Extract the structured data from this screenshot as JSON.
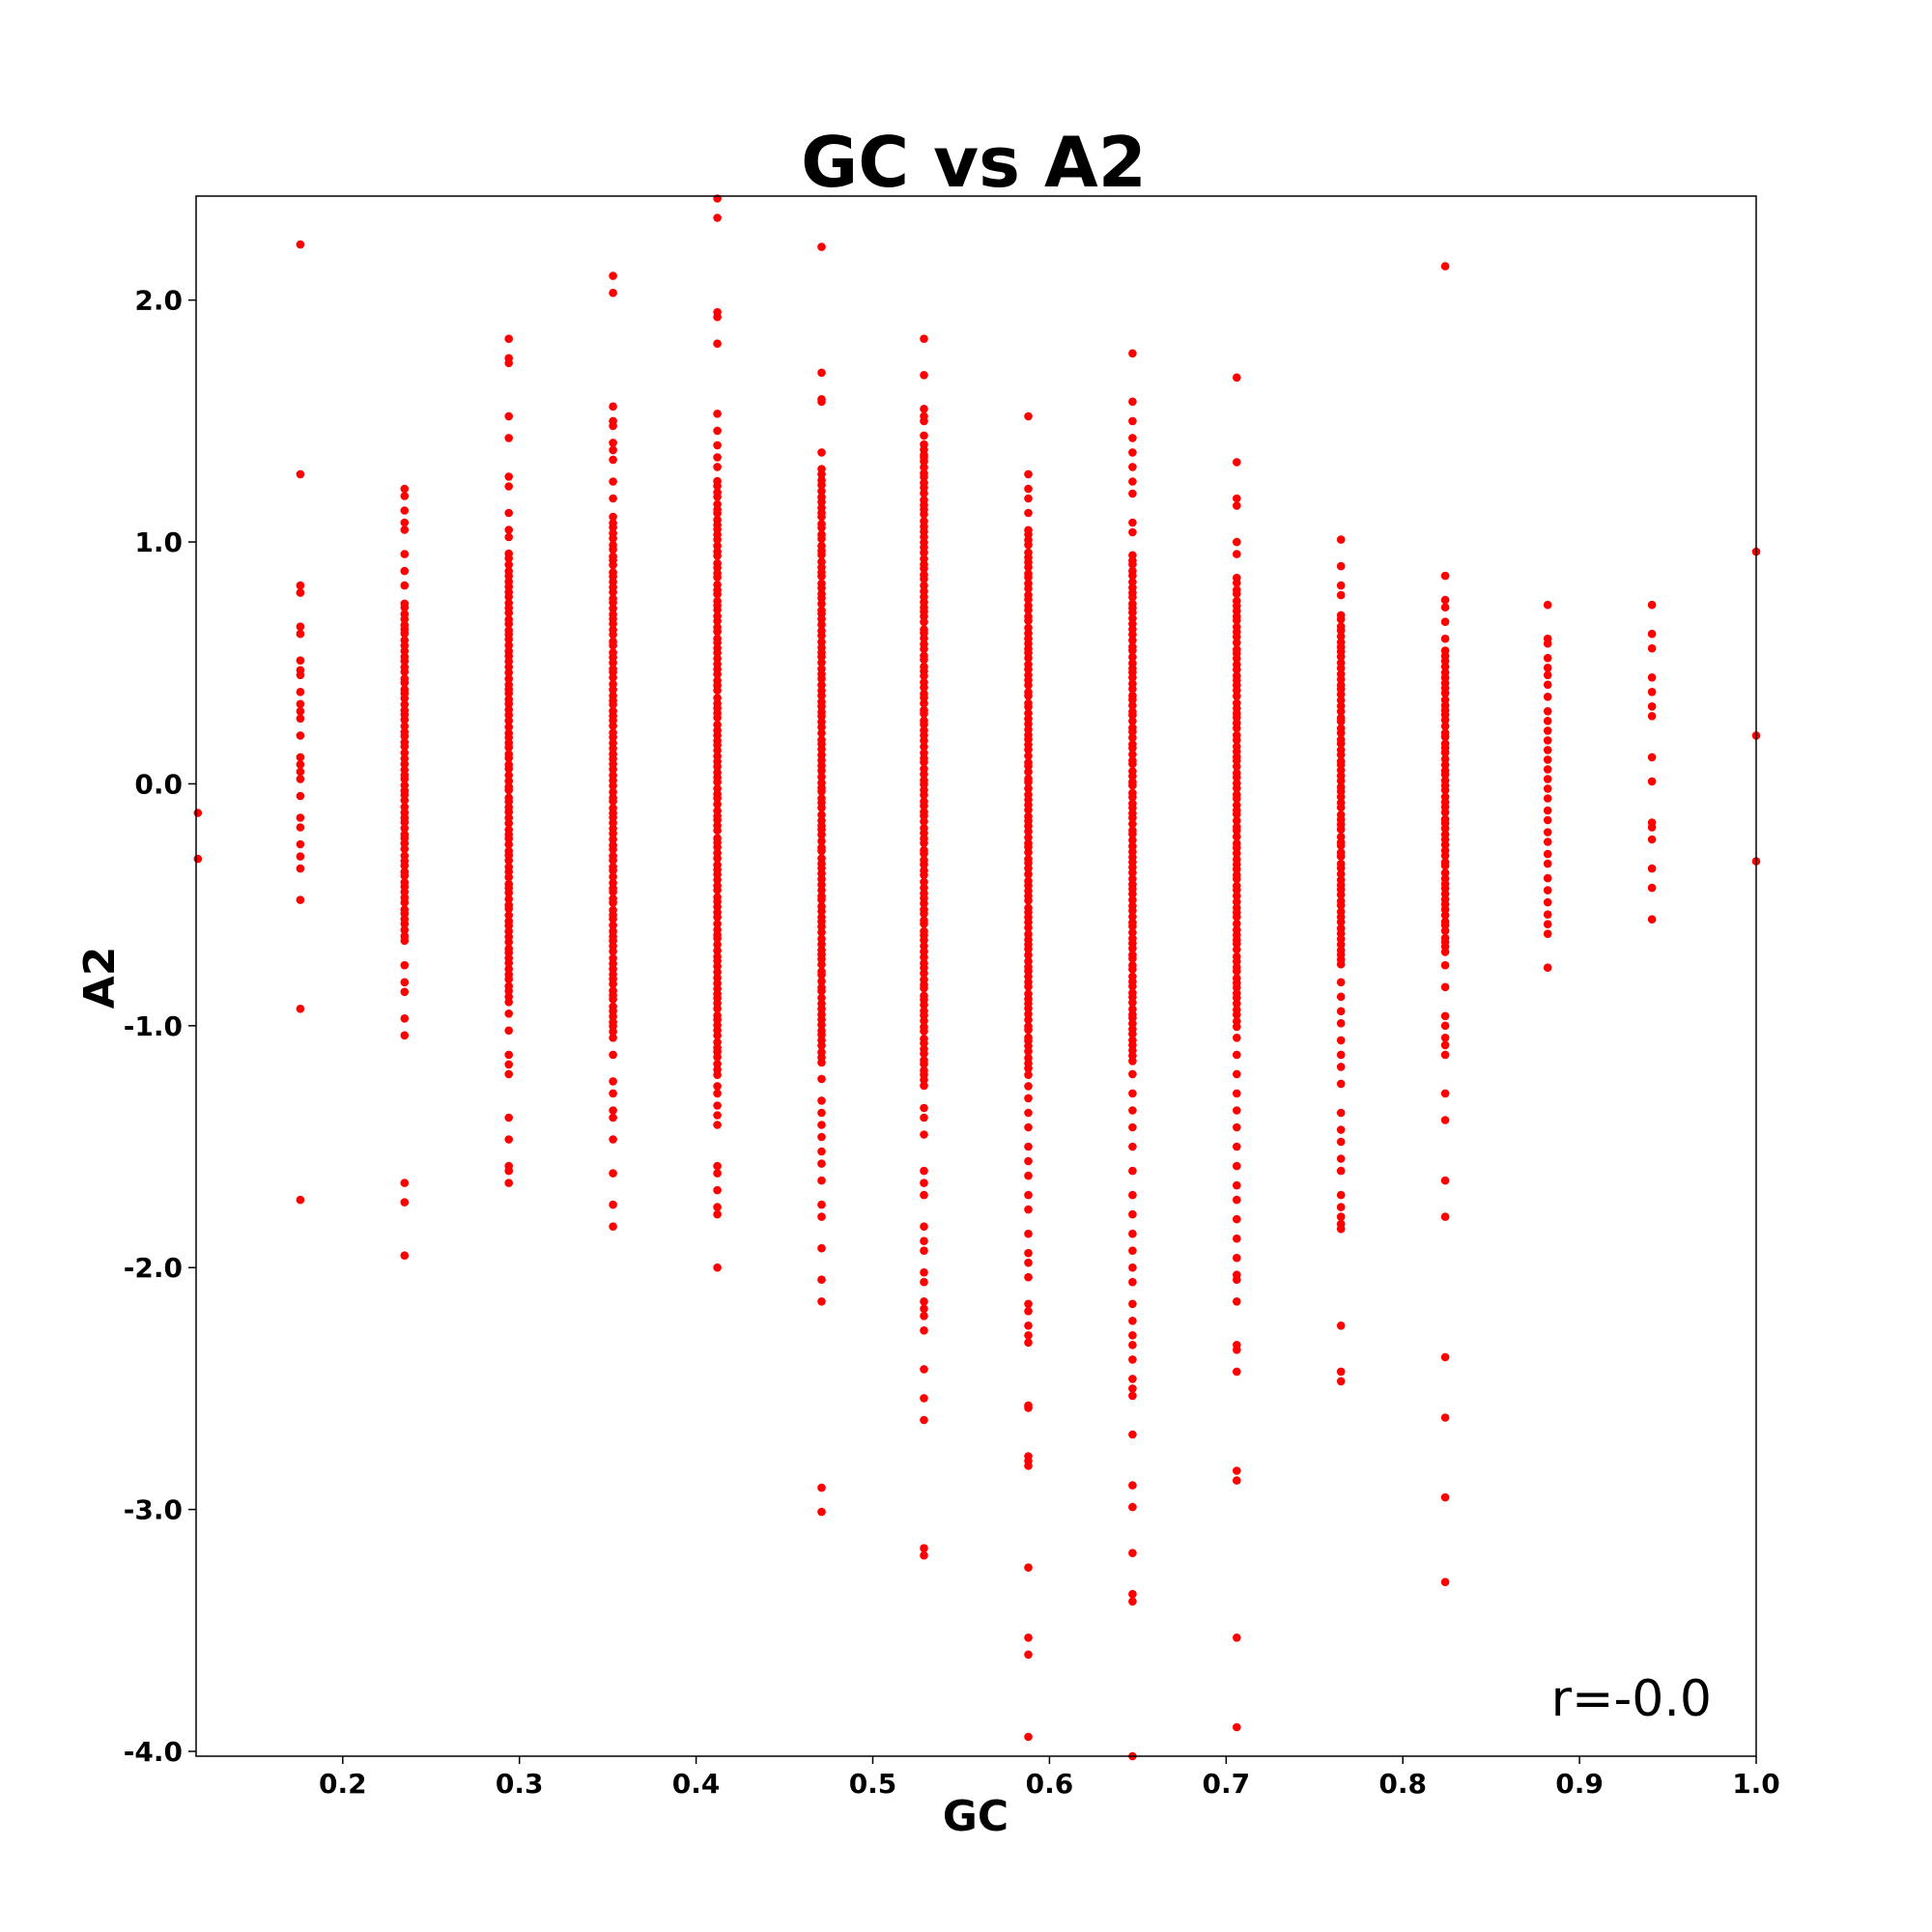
{
  "chart_data": {
    "type": "scatter",
    "title": "GC vs A2",
    "xlabel": "GC",
    "ylabel": "A2",
    "xlim": [
      0.117,
      1.0
    ],
    "ylim": [
      -4.02,
      2.43
    ],
    "xticks": [
      0.2,
      0.3,
      0.4,
      0.5,
      0.6,
      0.7,
      0.8,
      0.9,
      1.0
    ],
    "xtick_labels": [
      "0.2",
      "0.3",
      "0.4",
      "0.5",
      "0.6",
      "0.7",
      "0.8",
      "0.9",
      "1.0"
    ],
    "yticks": [
      2.0,
      1.0,
      0.0,
      -1.0,
      -2.0,
      -3.0,
      -4.0
    ],
    "ytick_labels": [
      "2.0",
      "1.0",
      "0.0",
      "-1.0",
      "-2.0",
      "-3.0",
      "-4.0"
    ],
    "grid": false,
    "marker_color": "#ff0000",
    "annotation": "r=-0.0",
    "columns": [
      {
        "x": 0.118,
        "dense": null,
        "outliers": [
          -0.12,
          -0.31
        ]
      },
      {
        "x": 0.176,
        "dense": null,
        "outliers": [
          2.23,
          1.28,
          0.82,
          0.79,
          0.65,
          0.62,
          0.51,
          0.47,
          0.45,
          0.38,
          0.33,
          0.3,
          0.27,
          0.2,
          0.11,
          0.08,
          0.05,
          0.02,
          -0.05,
          -0.14,
          -0.18,
          -0.25,
          -0.3,
          -0.35,
          -0.48,
          -0.93,
          -1.72
        ]
      },
      {
        "x": 0.235,
        "dense": [
          -0.65,
          0.75
        ],
        "outliers": [
          1.22,
          1.19,
          1.13,
          1.08,
          1.05,
          0.95,
          0.88,
          0.82,
          -0.75,
          -0.82,
          -0.86,
          -0.97,
          -1.04,
          -1.65,
          -1.73,
          -1.95
        ]
      },
      {
        "x": 0.294,
        "dense": [
          -0.9,
          0.95
        ],
        "outliers": [
          1.84,
          1.76,
          1.74,
          1.52,
          1.43,
          1.27,
          1.23,
          1.12,
          1.05,
          1.02,
          -0.95,
          -1.02,
          -1.12,
          -1.16,
          -1.2,
          -1.38,
          -1.47,
          -1.58,
          -1.6,
          -1.65
        ]
      },
      {
        "x": 0.353,
        "dense": [
          -1.05,
          1.1
        ],
        "outliers": [
          2.1,
          2.03,
          1.56,
          1.5,
          1.48,
          1.41,
          1.38,
          1.34,
          1.25,
          1.18,
          -1.12,
          -1.23,
          -1.28,
          -1.35,
          -1.38,
          -1.47,
          -1.61,
          -1.74,
          -1.83
        ]
      },
      {
        "x": 0.412,
        "dense": [
          -1.2,
          1.25
        ],
        "outliers": [
          2.42,
          2.34,
          1.95,
          1.93,
          1.82,
          1.53,
          1.46,
          1.4,
          1.35,
          1.31,
          -1.25,
          -1.28,
          -1.33,
          -1.37,
          -1.41,
          -1.58,
          -1.61,
          -1.68,
          -1.75,
          -1.78,
          -2.0
        ]
      },
      {
        "x": 0.471,
        "dense": [
          -1.15,
          1.3
        ],
        "outliers": [
          2.22,
          1.7,
          1.59,
          1.58,
          1.37,
          -1.22,
          -1.31,
          -1.36,
          -1.41,
          -1.46,
          -1.52,
          -1.57,
          -1.64,
          -1.74,
          -1.79,
          -1.92,
          -2.05,
          -2.14,
          -2.91,
          -3.01
        ]
      },
      {
        "x": 0.529,
        "dense": [
          -1.25,
          1.4
        ],
        "outliers": [
          1.84,
          1.69,
          1.55,
          1.52,
          1.5,
          1.44,
          1.35,
          -1.34,
          -1.38,
          -1.45,
          -1.6,
          -1.65,
          -1.7,
          -1.83,
          -1.89,
          -1.93,
          -2.02,
          -2.06,
          -2.14,
          -2.17,
          -2.2,
          -2.26,
          -2.42,
          -2.54,
          -2.63,
          -3.16,
          -3.19
        ]
      },
      {
        "x": 0.588,
        "dense": [
          -1.2,
          1.05
        ],
        "outliers": [
          1.52,
          1.28,
          1.22,
          1.18,
          1.12,
          -1.25,
          -1.3,
          -1.36,
          -1.42,
          -1.5,
          -1.56,
          -1.62,
          -1.7,
          -1.76,
          -1.86,
          -1.94,
          -1.98,
          -2.04,
          -2.15,
          -2.18,
          -2.24,
          -2.28,
          -2.31,
          -2.57,
          -2.58,
          -2.78,
          -2.8,
          -2.82,
          -3.24,
          -3.53,
          -3.6,
          -3.94
        ]
      },
      {
        "x": 0.647,
        "dense": [
          -1.15,
          0.95
        ],
        "outliers": [
          1.78,
          1.58,
          1.5,
          1.43,
          1.37,
          1.31,
          1.25,
          1.2,
          1.08,
          1.04,
          -1.2,
          -1.28,
          -1.35,
          -1.42,
          -1.5,
          -1.6,
          -1.7,
          -1.78,
          -1.86,
          -1.93,
          -2.0,
          -2.06,
          -2.15,
          -2.22,
          -2.28,
          -2.32,
          -2.38,
          -2.46,
          -2.5,
          -2.53,
          -2.69,
          -2.9,
          -2.99,
          -3.18,
          -3.35,
          -3.38,
          -4.02
        ]
      },
      {
        "x": 0.706,
        "dense": [
          -1.0,
          0.85
        ],
        "outliers": [
          1.68,
          1.33,
          1.18,
          1.15,
          1.0,
          0.95,
          -1.05,
          -1.12,
          -1.2,
          -1.28,
          -1.35,
          -1.42,
          -1.5,
          -1.58,
          -1.66,
          -1.72,
          -1.8,
          -1.88,
          -1.96,
          -2.03,
          -2.05,
          -2.14,
          -2.32,
          -2.34,
          -2.43,
          -2.84,
          -2.88,
          -3.53,
          -3.9
        ]
      },
      {
        "x": 0.765,
        "dense": [
          -0.75,
          0.7
        ],
        "outliers": [
          1.01,
          0.9,
          0.82,
          0.78,
          -0.82,
          -0.88,
          -0.94,
          -0.99,
          -1.06,
          -1.12,
          -1.17,
          -1.24,
          -1.36,
          -1.43,
          -1.48,
          -1.55,
          -1.6,
          -1.7,
          -1.75,
          -1.79,
          -1.82,
          -1.84,
          -2.24,
          -2.43,
          -2.47
        ]
      },
      {
        "x": 0.824,
        "dense": [
          -0.7,
          0.55
        ],
        "outliers": [
          2.14,
          0.86,
          0.76,
          0.73,
          0.67,
          0.6,
          -0.75,
          -0.84,
          -0.96,
          -1.0,
          -1.05,
          -1.08,
          -1.12,
          -1.28,
          -1.39,
          -1.64,
          -1.79,
          -2.37,
          -2.62,
          -2.95,
          -3.3
        ]
      },
      {
        "x": 0.882,
        "dense": null,
        "outliers": [
          0.74,
          0.6,
          0.58,
          0.52,
          0.48,
          0.45,
          0.41,
          0.36,
          0.3,
          0.26,
          0.22,
          0.18,
          0.14,
          0.1,
          0.06,
          0.02,
          -0.02,
          -0.06,
          -0.11,
          -0.15,
          -0.2,
          -0.24,
          -0.29,
          -0.33,
          -0.39,
          -0.44,
          -0.49,
          -0.54,
          -0.58,
          -0.62,
          -0.76
        ]
      },
      {
        "x": 0.941,
        "dense": null,
        "outliers": [
          0.74,
          0.62,
          0.56,
          0.44,
          0.38,
          0.32,
          0.28,
          0.11,
          0.01,
          -0.16,
          -0.18,
          -0.23,
          -0.35,
          -0.43,
          -0.56
        ]
      },
      {
        "x": 1.0,
        "dense": null,
        "outliers": [
          0.96,
          0.2,
          -0.32
        ]
      }
    ]
  }
}
